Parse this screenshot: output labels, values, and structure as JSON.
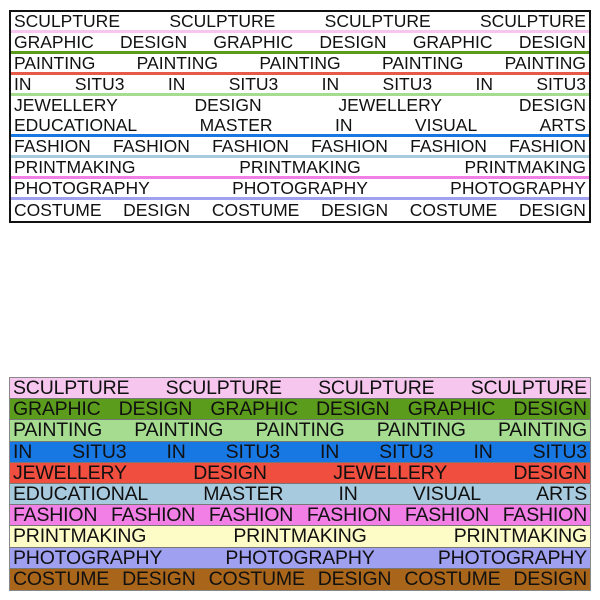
{
  "rows": [
    {
      "words": [
        "SCULPTURE",
        "SCULPTURE",
        "SCULPTURE",
        "SCULPTURE"
      ],
      "color": "#f6c6ee"
    },
    {
      "words": [
        "GRAPHIC",
        "DESIGN",
        "GRAPHIC",
        "DESIGN",
        "GRAPHIC",
        "DESIGN"
      ],
      "color": "#5b9c1c"
    },
    {
      "words": [
        "PAINTING",
        "PAINTING",
        "PAINTING",
        "PAINTING",
        "PAINTING"
      ],
      "color": "#a5dc90"
    },
    {
      "words": [
        "IN",
        "SITU3",
        "IN",
        "SITU3",
        "IN",
        "SITU3",
        "IN",
        "SITU3"
      ],
      "color": "#1778e4"
    },
    {
      "words": [
        "JEWELLERY",
        "DESIGN",
        "JEWELLERY",
        "DESIGN"
      ],
      "color": "#f04e3e"
    },
    {
      "words": [
        "EDUCATIONAL",
        "MASTER",
        "IN",
        "VISUAL",
        "ARTS"
      ],
      "color": "#a8cade"
    },
    {
      "words": [
        "FASHION",
        "FASHION",
        "FASHION",
        "FASHION",
        "FASHION",
        "FASHION"
      ],
      "color": "#f17fe6"
    },
    {
      "words": [
        "PRINTMAKING",
        "PRINTMAKING",
        "PRINTMAKING"
      ],
      "color": "#fdfbc6"
    },
    {
      "words": [
        "PHOTOGRAPHY",
        "PHOTOGRAPHY",
        "PHOTOGRAPHY"
      ],
      "color": "#a0a0f0"
    },
    {
      "words": [
        "COSTUME",
        "DESIGN",
        "COSTUME",
        "DESIGN",
        "COSTUME",
        "DESIGN"
      ],
      "color": "#a9651a"
    }
  ],
  "top_underline_colors": [
    "#f6c6ee",
    "#5b9c1c",
    "#e85a48",
    "#a5dc90",
    "#ffffff",
    "#1778e4",
    "#a8cade",
    "#f17fe6",
    "#a0a0f0",
    "#a9651a"
  ]
}
